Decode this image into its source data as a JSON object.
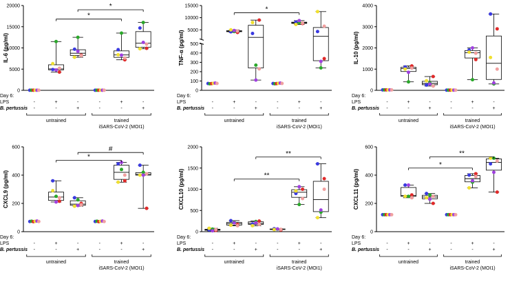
{
  "row_labels": {
    "day": "Day 6:",
    "lps": "LPS",
    "bp": "B. pertussis"
  },
  "conditions": {
    "lps": [
      "-",
      "+",
      "-",
      "-",
      "+",
      "-"
    ],
    "bp": [
      "-",
      "-",
      "+",
      "-",
      "-",
      "+"
    ]
  },
  "groups": {
    "untrained": "untrained",
    "trained_line1": "trained",
    "trained_line2": "iSARS-CoV-2 (MOI1)"
  },
  "donor_colors": [
    "#3a3ae0",
    "#2aa82a",
    "#e02a2a",
    "#f0e030",
    "#a040e0",
    "#f0a0a0"
  ],
  "chart_data": [
    {
      "type": "box",
      "title": "IL-6 (pg/ml)",
      "ylabel": "IL-6 (pg/ml)",
      "ylim": [
        0,
        20000
      ],
      "yticks": [
        0,
        5000,
        10000,
        15000,
        20000
      ],
      "yticklabels": [
        "0",
        "5000",
        "10000",
        "15000",
        "20000"
      ],
      "series": [
        {
          "name": "untrained, -, -",
          "values": [
            30,
            30,
            30,
            30,
            30,
            30
          ]
        },
        {
          "name": "untrained, LPS",
          "values": [
            4900,
            11500,
            4300,
            6300,
            4800,
            5200
          ]
        },
        {
          "name": "untrained, B. pertussis",
          "values": [
            9700,
            12500,
            8300,
            7800,
            9200,
            8200
          ]
        },
        {
          "name": "trained, -, -",
          "values": [
            30,
            30,
            30,
            30,
            30,
            30
          ]
        },
        {
          "name": "trained, LPS",
          "values": [
            9600,
            13500,
            7200,
            8400,
            8300,
            7600
          ]
        },
        {
          "name": "trained, B. pertussis",
          "values": [
            14700,
            16000,
            9900,
            9800,
            11300,
            10900
          ]
        }
      ],
      "annotations": [
        {
          "from": 1,
          "to": 4,
          "label": "*",
          "y": 16800
        },
        {
          "from": 2,
          "to": 5,
          "label": "*",
          "y": 19000
        }
      ]
    },
    {
      "type": "box",
      "title": "TNF-α (pg/ml)",
      "ylabel": "TNF-α (pg/ml)",
      "ylim": [
        0,
        15000
      ],
      "break": {
        "at": 500,
        "resume": 1000
      },
      "yticks": [
        0,
        100,
        200,
        300,
        400,
        500,
        5000,
        10000,
        15000
      ],
      "yticklabels": [
        "0",
        "100",
        "200",
        "300",
        "400",
        "500",
        "5000",
        "10000",
        "15000"
      ],
      "series": [
        {
          "name": "untrained, -, -",
          "values": [
            73,
            70,
            72,
            75,
            78,
            74
          ]
        },
        {
          "name": "untrained, LPS",
          "values": [
            4200,
            4300,
            3900,
            5000,
            4700,
            4500
          ]
        },
        {
          "name": "untrained, B. pertussis",
          "values": [
            3500,
            270,
            9000,
            8000,
            110,
            230
          ]
        },
        {
          "name": "trained, -, -",
          "values": [
            73,
            70,
            72,
            75,
            78,
            74
          ]
        },
        {
          "name": "trained, LPS",
          "values": [
            8200,
            8000,
            7600,
            7200,
            8800,
            7800
          ]
        },
        {
          "name": "trained, B. pertussis",
          "values": [
            4300,
            240,
            340,
            12500,
            310,
            6500
          ]
        }
      ],
      "annotations": [
        {
          "from": 1,
          "to": 4,
          "label": "*",
          "y": 12000
        }
      ]
    },
    {
      "type": "box",
      "title": "IL-10 (pg/ml)",
      "ylabel": "IL-10 (pg/ml)",
      "ylim": [
        0,
        4000
      ],
      "yticks": [
        0,
        1000,
        2000,
        3000,
        4000
      ],
      "yticklabels": [
        "0",
        "1000",
        "2000",
        "3000",
        "4000"
      ],
      "series": [
        {
          "name": "untrained, -, -",
          "values": [
            20,
            20,
            20,
            20,
            20,
            20
          ]
        },
        {
          "name": "untrained, LPS",
          "values": [
            1100,
            400,
            1150,
            1000,
            850,
            1050
          ]
        },
        {
          "name": "untrained, B. pertussis",
          "values": [
            250,
            350,
            650,
            450,
            300,
            200
          ]
        },
        {
          "name": "trained, -, -",
          "values": [
            10,
            10,
            10,
            10,
            10,
            10
          ]
        },
        {
          "name": "trained, LPS",
          "values": [
            1900,
            500,
            1450,
            1800,
            2000,
            1750
          ]
        },
        {
          "name": "trained, B. pertussis",
          "values": [
            3600,
            300,
            2900,
            1550,
            350,
            1000
          ]
        }
      ],
      "annotations": []
    },
    {
      "type": "box",
      "title": "CXCL9 (pg/ml)",
      "ylabel": "CXCL9 (pg/ml)",
      "ylim": [
        0,
        600
      ],
      "yticks": [
        0,
        200,
        400,
        600
      ],
      "yticklabels": [
        "0",
        "200",
        "400",
        "600"
      ],
      "series": [
        {
          "name": "untrained, -, -",
          "values": [
            72,
            74,
            71,
            73,
            75,
            72
          ]
        },
        {
          "name": "untrained, LPS",
          "values": [
            360,
            250,
            215,
            290,
            210,
            240
          ]
        },
        {
          "name": "untrained, B. pertussis",
          "values": [
            240,
            225,
            200,
            180,
            185,
            190
          ]
        },
        {
          "name": "trained, -, -",
          "values": [
            72,
            74,
            71,
            73,
            75,
            72
          ]
        },
        {
          "name": "trained, LPS",
          "values": [
            480,
            440,
            360,
            350,
            490,
            400
          ]
        },
        {
          "name": "trained, B. pertussis",
          "values": [
            470,
            420,
            165,
            400,
            400,
            410
          ]
        }
      ],
      "annotations": [
        {
          "from": 1,
          "to": 4,
          "label": "*",
          "y": 505
        },
        {
          "from": 2,
          "to": 5,
          "label": "#",
          "y": 560
        }
      ]
    },
    {
      "type": "box",
      "title": "CXCL10 (pg/ml)",
      "ylabel": "CXCL10 (pg/ml)",
      "ylim": [
        0,
        2000
      ],
      "yticks": [
        0,
        500,
        1000,
        1500,
        2000
      ],
      "yticklabels": [
        "0",
        "500",
        "1000",
        "1500",
        "2000"
      ],
      "series": [
        {
          "name": "untrained, -, -",
          "values": [
            40,
            60,
            30,
            80,
            20,
            50
          ]
        },
        {
          "name": "untrained, LPS",
          "values": [
            260,
            220,
            170,
            150,
            210,
            140
          ]
        },
        {
          "name": "untrained, B. pertussis",
          "values": [
            180,
            240,
            250,
            140,
            210,
            170
          ]
        },
        {
          "name": "trained, -, -",
          "values": [
            70,
            60,
            40,
            50,
            65,
            55
          ]
        },
        {
          "name": "trained, LPS",
          "values": [
            900,
            640,
            1000,
            960,
            1060,
            780
          ]
        },
        {
          "name": "trained, B. pertussis",
          "values": [
            1600,
            460,
            1250,
            330,
            510,
            1000
          ]
        }
      ],
      "annotations": [
        {
          "from": 1,
          "to": 4,
          "label": "**",
          "y": 1240
        },
        {
          "from": 2,
          "to": 5,
          "label": "**",
          "y": 1760
        }
      ]
    },
    {
      "type": "box",
      "title": "CXCL11 (pg/ml)",
      "ylabel": "CXCL11 (pg/ml)",
      "ylim": [
        0,
        600
      ],
      "yticks": [
        0,
        200,
        400,
        600
      ],
      "yticklabels": [
        "0",
        "200",
        "400",
        "600"
      ],
      "series": [
        {
          "name": "untrained, -, -",
          "values": [
            120,
            120,
            120,
            120,
            120,
            120
          ]
        },
        {
          "name": "untrained, LPS",
          "values": [
            330,
            250,
            260,
            250,
            330,
            240
          ]
        },
        {
          "name": "untrained, B. pertussis",
          "values": [
            270,
            260,
            200,
            240,
            230,
            250
          ]
        },
        {
          "name": "trained, -, -",
          "values": [
            120,
            120,
            120,
            120,
            120,
            120
          ]
        },
        {
          "name": "trained, LPS",
          "values": [
            400,
            350,
            410,
            310,
            360,
            390
          ]
        },
        {
          "name": "trained, B. pertussis",
          "values": [
            480,
            520,
            280,
            520,
            420,
            500
          ]
        }
      ],
      "annotations": [
        {
          "from": 1,
          "to": 4,
          "label": "*",
          "y": 450
        },
        {
          "from": 2,
          "to": 5,
          "label": "**",
          "y": 530
        }
      ]
    }
  ]
}
